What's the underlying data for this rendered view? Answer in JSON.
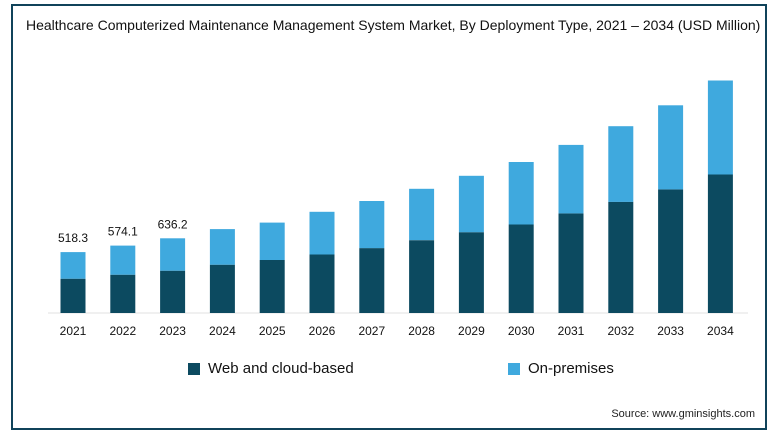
{
  "chart_data": {
    "type": "bar",
    "stacked": true,
    "title": "Healthcare Computerized Maintenance Management System Market, By Deployment Type, 2021 – 2034 (USD Million)",
    "categories": [
      "2021",
      "2022",
      "2023",
      "2024",
      "2025",
      "2026",
      "2027",
      "2028",
      "2029",
      "2030",
      "2031",
      "2032",
      "2033",
      "2034"
    ],
    "series": [
      {
        "name": "Web and cloud-based",
        "color": "#0c4a60",
        "values": [
          292,
          326,
          360,
          411,
          451,
          498,
          552,
          620,
          688,
          753,
          848,
          946,
          1052,
          1179
        ]
      },
      {
        "name": "On-premises",
        "color": "#3fa9de",
        "values": [
          226,
          248,
          276,
          303,
          318,
          363,
          401,
          437,
          480,
          532,
          583,
          644,
          716,
          800
        ]
      }
    ],
    "totals_labels": [
      "518.3",
      "574.1",
      "636.2"
    ],
    "ylim": [
      0,
      2000
    ],
    "grid": false,
    "legend": "bottom"
  },
  "source": "Source: www.gminsights.com"
}
